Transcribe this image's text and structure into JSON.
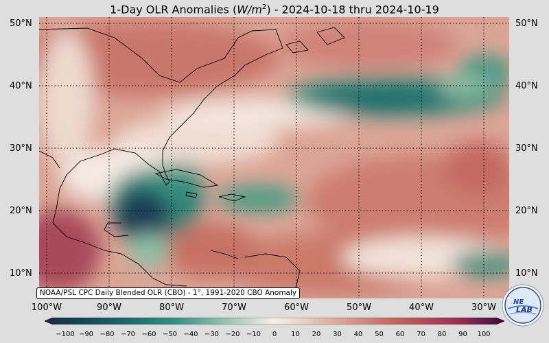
{
  "title": {
    "prefix": "1-Day OLR Anomalies (",
    "unit_base": "W/m",
    "unit_exp": "2",
    "suffix": ") - 2024-10-18 thru 2024-10-19"
  },
  "lat_labels": [
    "50°N",
    "40°N",
    "30°N",
    "20°N",
    "10°N"
  ],
  "lon_labels": [
    "100°W",
    "90°W",
    "80°W",
    "70°W",
    "60°W",
    "50°W",
    "40°W",
    "30°W"
  ],
  "source_label": "NOAA/PSL CPC Daily Blended OLR (CBO) - 1°, 1991-2020 CBO Anomaly",
  "colorbar": {
    "ticks": [
      "−100",
      "−90",
      "−80",
      "−70",
      "−60",
      "−50",
      "−40",
      "−30",
      "−20",
      "−10",
      "0",
      "10",
      "20",
      "30",
      "40",
      "50",
      "60",
      "70",
      "80",
      "90",
      "100"
    ],
    "colors": {
      "min": "#1a2a44",
      "neg_strong": "#135f66",
      "neg_mid": "#2f8f82",
      "neg_weak": "#9cc7b2",
      "zero": "#f7efe8",
      "pos_weak": "#e3b0a0",
      "pos_mid": "#c86a5f",
      "pos_strong": "#9b2f52",
      "max": "#3d0c3e"
    }
  },
  "logo": {
    "text_top": "NE",
    "text_bottom": "LAB"
  }
}
